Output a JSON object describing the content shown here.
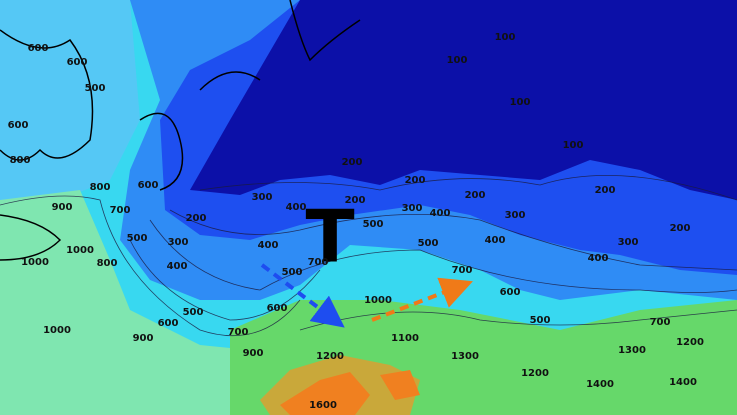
{
  "pressure_marker": "T",
  "contour_labels": [
    600,
    600,
    500,
    600,
    800,
    800,
    900,
    1000,
    1000,
    800,
    700,
    600,
    500,
    400,
    300,
    200,
    300,
    400,
    200,
    300,
    400,
    500,
    400,
    500,
    700,
    600,
    500,
    600,
    700,
    900,
    1000,
    900,
    1000,
    1100,
    700,
    600,
    500,
    400,
    300,
    200,
    200,
    200,
    100,
    100,
    100,
    100,
    200,
    200,
    300,
    400,
    500,
    700,
    1200,
    1300,
    1300,
    1400,
    1400,
    1200,
    1600,
    1200
  ]
}
